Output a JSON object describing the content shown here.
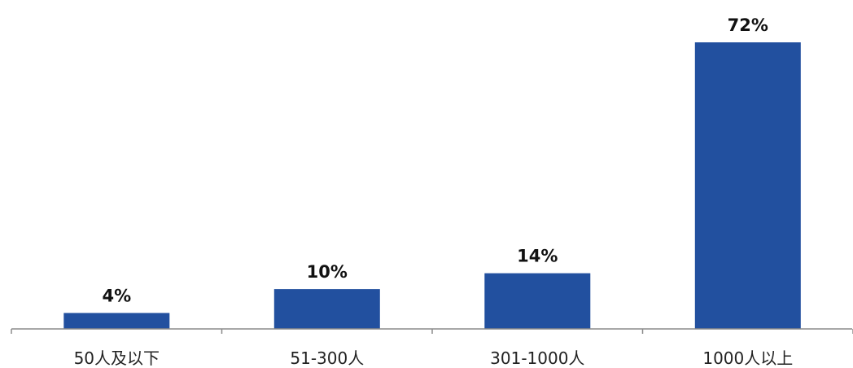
{
  "chart_data": {
    "type": "bar",
    "categories": [
      "50人及以下",
      "51-300人",
      "301-1000人",
      "1000人以上"
    ],
    "values": [
      4,
      10,
      14,
      72
    ],
    "value_labels": [
      "4%",
      "10%",
      "14%",
      "72%"
    ],
    "title": "",
    "xlabel": "",
    "ylabel": "",
    "ylim": [
      0,
      72
    ],
    "grid": false,
    "bar_color": "#22509F",
    "axis_color": "#8C8C8C"
  }
}
